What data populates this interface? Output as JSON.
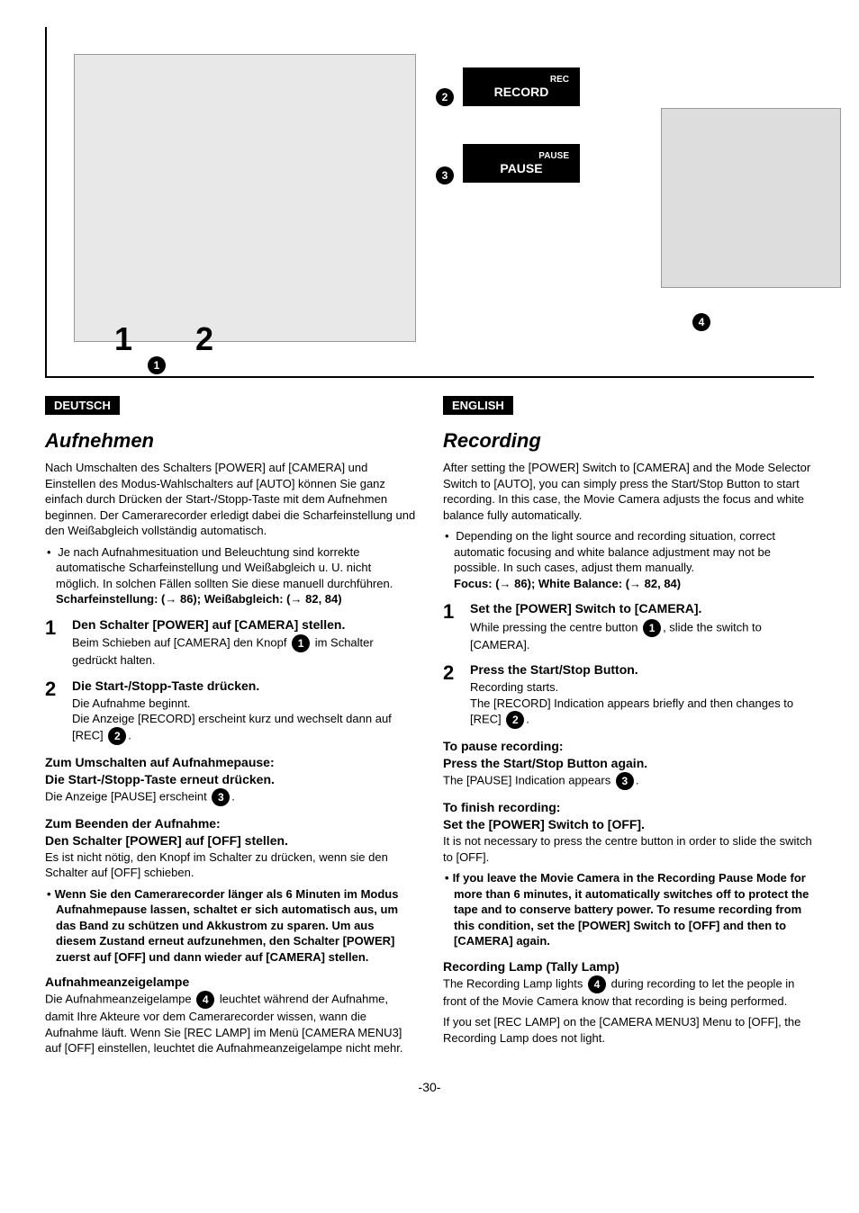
{
  "diagram": {
    "rec_label": "REC",
    "record_box": "RECORD",
    "pause_small": "PAUSE",
    "pause_box": "PAUSE",
    "big1": "1",
    "big2": "2",
    "n1": "1",
    "n2": "2",
    "n3": "3",
    "n4": "4"
  },
  "de": {
    "lang": "DEUTSCH",
    "title": "Aufnehmen",
    "intro": "Nach Umschalten des Schalters [POWER] auf [CAMERA] und Einstellen des Modus-Wahlschalters auf [AUTO] können Sie ganz einfach durch Drücken der Start-/Stopp-Taste mit dem Aufnehmen beginnen. Der Camerarecorder erledigt dabei die Scharfeinstellung und den Weißabgleich vollständig automatisch.",
    "bullet1_a": "Je nach Aufnahmesituation und Beleuchtung sind korrekte automatische Scharfeinstellung und Weißabgleich u. U. nicht möglich. In solchen Fällen sollten Sie diese manuell durchführen.",
    "bullet1_b": "Scharfeinstellung: (→ 86); Weißabgleich: (→ 82, 84)",
    "step1_title": "Den Schalter [POWER] auf [CAMERA] stellen.",
    "step1_text_a": "Beim Schieben auf [CAMERA] den Knopf ",
    "step1_text_b": " im Schalter gedrückt halten.",
    "step2_title": "Die Start-/Stopp-Taste drücken.",
    "step2_text_a": "Die Aufnahme beginnt.",
    "step2_text_b_a": "Die Anzeige [RECORD] erscheint kurz und wechselt dann auf [REC] ",
    "step2_text_b_b": ".",
    "pause_h1": "Zum Umschalten auf Aufnahmepause:",
    "pause_h2": "Die Start-/Stopp-Taste erneut drücken.",
    "pause_text_a": "Die Anzeige [PAUSE] erscheint ",
    "pause_text_b": ".",
    "finish_h1": "Zum Beenden der Aufnahme:",
    "finish_h2": "Den Schalter [POWER] auf [OFF] stellen.",
    "finish_text": "Es ist nicht nötig, den Knopf im Schalter zu drücken, wenn sie den Schalter auf [OFF] schieben.",
    "note": "Wenn Sie den Camerarecorder länger als 6 Minuten im Modus Aufnahmepause lassen, schaltet er sich automatisch aus, um das Band zu schützen und Akkustrom zu sparen. Um aus diesem Zustand erneut aufzunehmen, den Schalter [POWER] zuerst auf [OFF] und dann wieder auf [CAMERA] stellen.",
    "lamp_h": "Aufnahmeanzeigelampe",
    "lamp_text_a": "Die Aufnahmeanzeigelampe ",
    "lamp_text_b": " leuchtet während der Aufnahme, damit Ihre Akteure vor dem Camerarecorder wissen, wann die Aufnahme läuft. Wenn Sie [REC LAMP] im Menü [CAMERA MENU3] auf [OFF] einstellen, leuchtet die Aufnahmeanzeigelampe nicht mehr."
  },
  "en": {
    "lang": "ENGLISH",
    "title": "Recording",
    "intro": "After setting the [POWER] Switch to [CAMERA] and the Mode Selector Switch to [AUTO], you can simply press the Start/Stop Button to start recording. In this case, the Movie Camera adjusts the focus and white balance fully automatically.",
    "bullet1_a": "Depending on the light source and recording situation, correct automatic focusing and white balance adjustment may not be possible. In such cases, adjust them manually.",
    "bullet1_b": "Focus: (→ 86); White Balance: (→ 82, 84)",
    "step1_title": "Set the [POWER] Switch to [CAMERA].",
    "step1_text_a": "While pressing the centre button ",
    "step1_text_b": ", slide the switch to [CAMERA].",
    "step2_title": "Press the Start/Stop Button.",
    "step2_text_a": "Recording starts.",
    "step2_text_b_a": "The [RECORD] Indication appears briefly and then changes to [REC] ",
    "step2_text_b_b": ".",
    "pause_h1": "To pause recording:",
    "pause_h2": "Press the Start/Stop Button again.",
    "pause_text_a": "The [PAUSE] Indication appears ",
    "pause_text_b": ".",
    "finish_h1": "To finish recording:",
    "finish_h2": "Set the [POWER] Switch to [OFF].",
    "finish_text": "It is not necessary to press the centre button in order to slide the switch to [OFF].",
    "note": "If you leave the Movie Camera in the Recording Pause Mode for more than 6 minutes, it automatically switches off to protect the tape and to conserve battery power. To resume recording from this condition, set the [POWER] Switch to [OFF] and then to [CAMERA] again.",
    "lamp_h": "Recording Lamp (Tally Lamp)",
    "lamp_text_a": "The Recording Lamp lights ",
    "lamp_text_b": " during recording to let the people in front of the Movie Camera know that recording is being performed.",
    "lamp_text_c": "If you set [REC LAMP] on the [CAMERA MENU3] Menu to [OFF], the Recording Lamp does not light."
  },
  "page": "-30-"
}
